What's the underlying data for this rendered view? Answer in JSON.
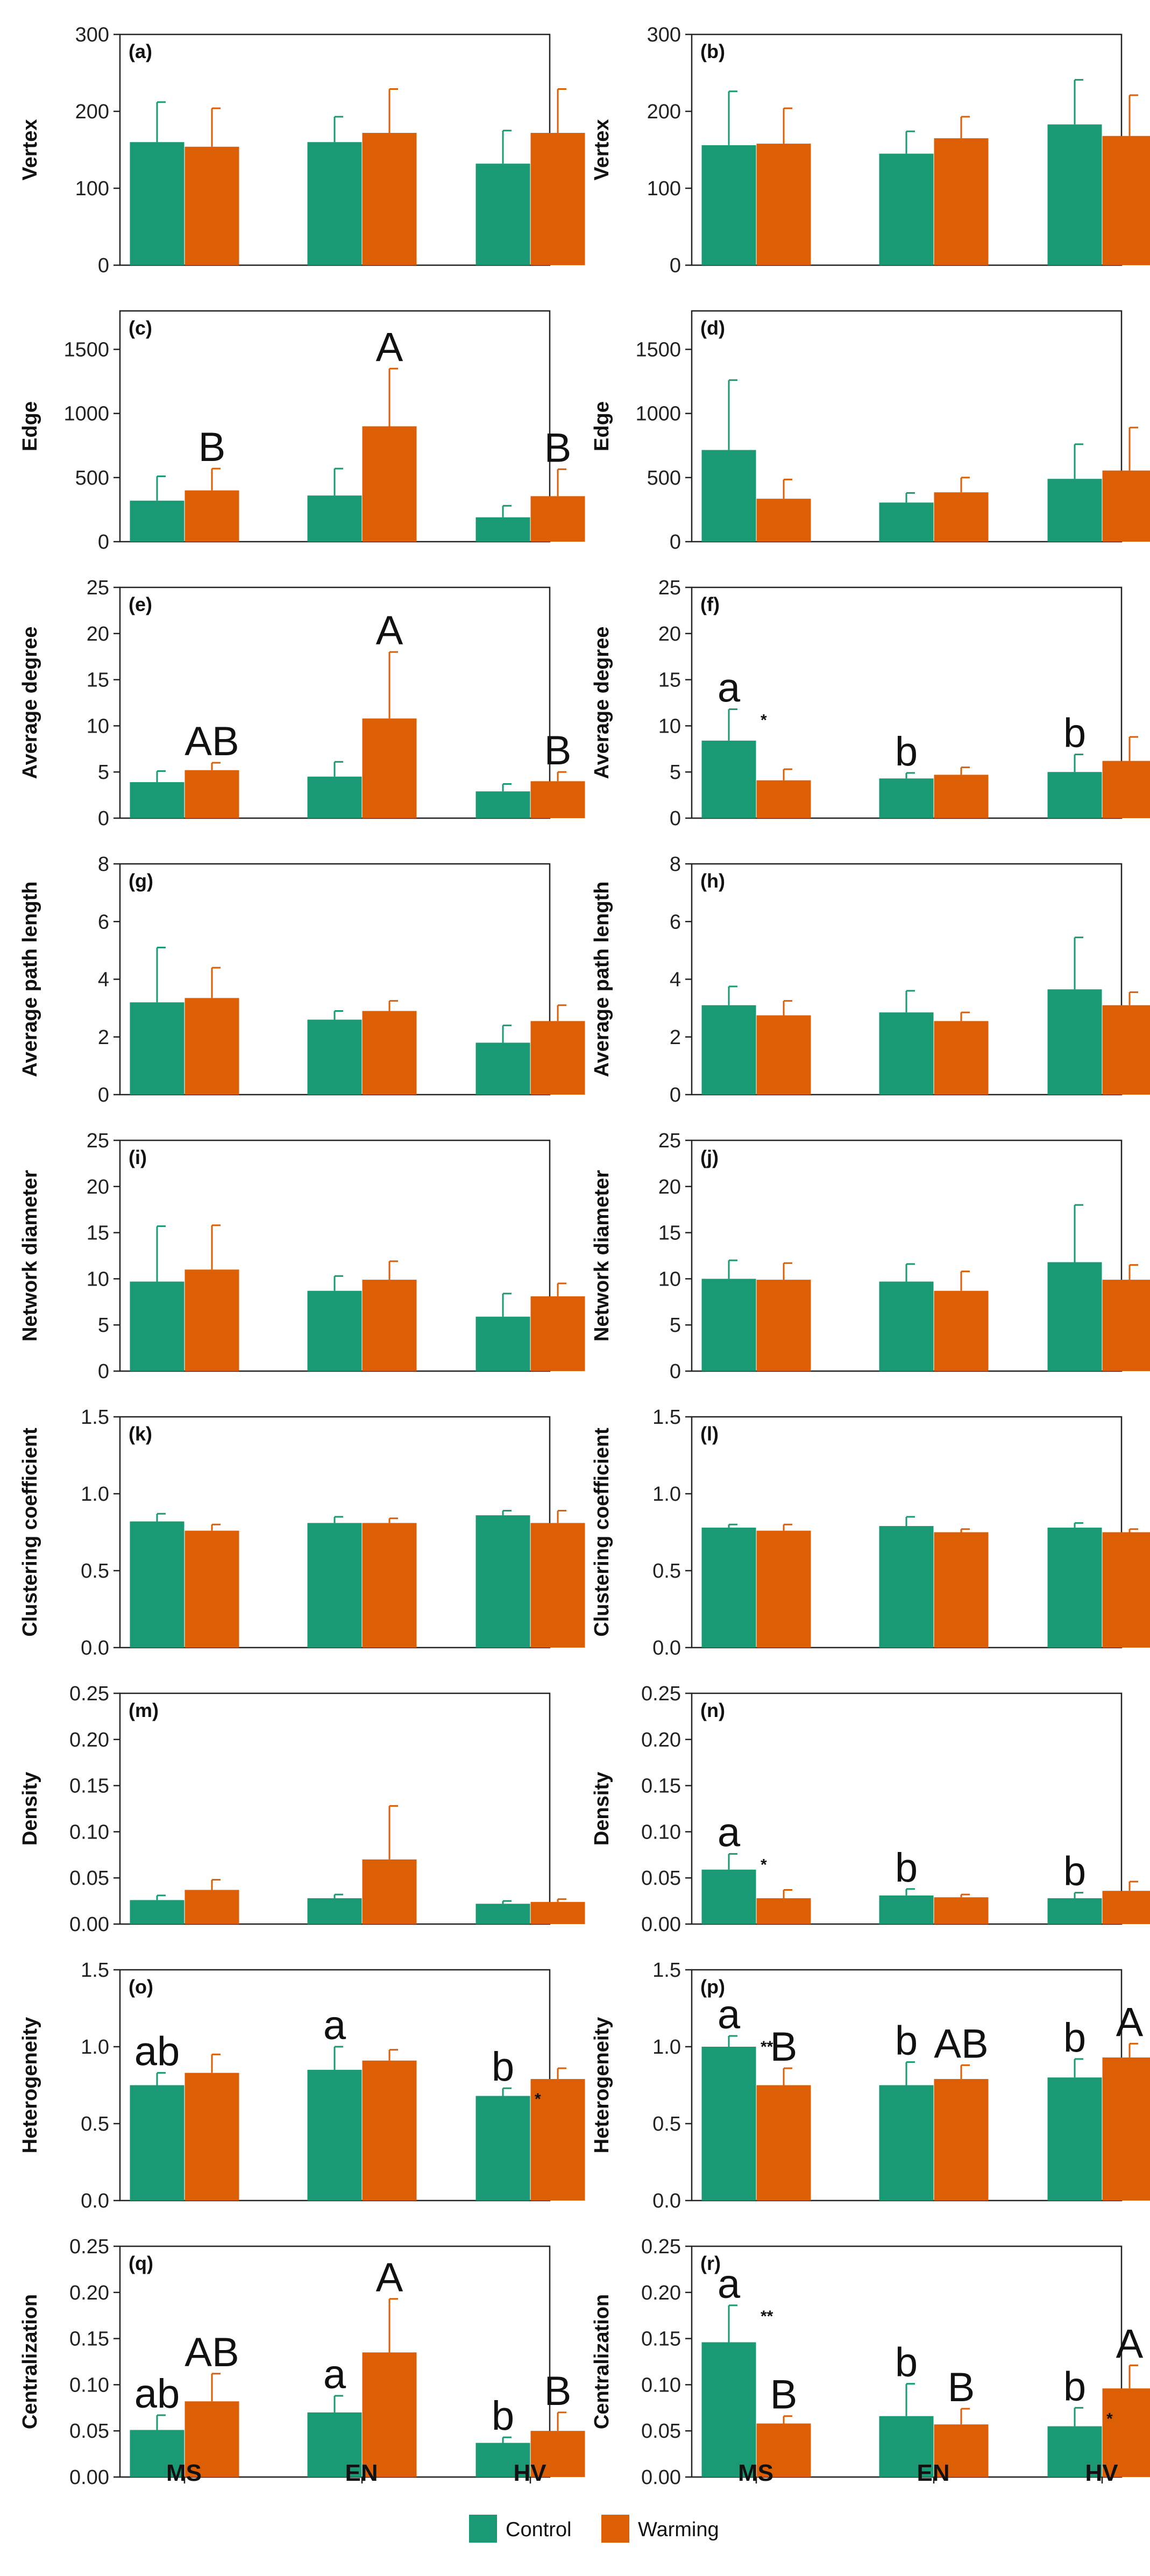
{
  "colors": {
    "control": "#1a9a74",
    "warming": "#dd5f05"
  },
  "legend": {
    "control": "Control",
    "warming": "Warming"
  },
  "categories": [
    "MS",
    "EN",
    "HV"
  ],
  "chart_data": [
    {
      "panel": "(a)",
      "type": "bar",
      "ylabel": "Vertex",
      "ylim": [
        0,
        300
      ],
      "yticks": [
        "0",
        "100",
        "200",
        "300"
      ],
      "categories": [
        "MS",
        "EN",
        "HV"
      ],
      "series": [
        {
          "name": "Control",
          "values": [
            160,
            160,
            132
          ],
          "err": [
            52,
            33,
            43
          ]
        },
        {
          "name": "Warming",
          "values": [
            154,
            172,
            172
          ],
          "err": [
            50,
            57,
            57
          ]
        }
      ],
      "letters": [],
      "stars": []
    },
    {
      "panel": "(b)",
      "type": "bar",
      "ylabel": "Vertex",
      "ylim": [
        0,
        300
      ],
      "yticks": [
        "0",
        "100",
        "200",
        "300"
      ],
      "categories": [
        "MS",
        "EN",
        "HV"
      ],
      "series": [
        {
          "name": "Control",
          "values": [
            156,
            145,
            183
          ],
          "err": [
            70,
            29,
            58
          ]
        },
        {
          "name": "Warming",
          "values": [
            158,
            165,
            168
          ],
          "err": [
            46,
            28,
            53
          ]
        }
      ],
      "letters": [],
      "stars": []
    },
    {
      "panel": "(c)",
      "type": "bar",
      "ylabel": "Edge",
      "ylim": [
        0,
        1800
      ],
      "yticks": [
        "0",
        "500",
        "1000",
        "1500"
      ],
      "categories": [
        "MS",
        "EN",
        "HV"
      ],
      "series": [
        {
          "name": "Control",
          "values": [
            320,
            360,
            190
          ],
          "err": [
            190,
            210,
            90
          ]
        },
        {
          "name": "Warming",
          "values": [
            400,
            900,
            355
          ],
          "err": [
            170,
            450,
            210
          ]
        }
      ],
      "letters": [
        {
          "series": 1,
          "cat": 0,
          "text": "B"
        },
        {
          "series": 1,
          "cat": 1,
          "text": "A"
        },
        {
          "series": 1,
          "cat": 2,
          "text": "B"
        }
      ],
      "stars": []
    },
    {
      "panel": "(d)",
      "type": "bar",
      "ylabel": "Edge",
      "ylim": [
        0,
        1800
      ],
      "yticks": [
        "0",
        "500",
        "1000",
        "1500"
      ],
      "categories": [
        "MS",
        "EN",
        "HV"
      ],
      "series": [
        {
          "name": "Control",
          "values": [
            715,
            305,
            490
          ],
          "err": [
            545,
            75,
            270
          ]
        },
        {
          "name": "Warming",
          "values": [
            335,
            385,
            555
          ],
          "err": [
            150,
            115,
            335
          ]
        }
      ],
      "letters": [],
      "stars": []
    },
    {
      "panel": "(e)",
      "type": "bar",
      "ylabel": "Average degree",
      "ylim": [
        0,
        25
      ],
      "yticks": [
        "0",
        "5",
        "10",
        "15",
        "20",
        "25"
      ],
      "categories": [
        "MS",
        "EN",
        "HV"
      ],
      "series": [
        {
          "name": "Control",
          "values": [
            3.9,
            4.5,
            2.9
          ],
          "err": [
            1.2,
            1.6,
            0.8
          ]
        },
        {
          "name": "Warming",
          "values": [
            5.2,
            10.8,
            4.0
          ],
          "err": [
            0.8,
            7.2,
            1.0
          ]
        }
      ],
      "letters": [
        {
          "series": 1,
          "cat": 0,
          "text": "AB"
        },
        {
          "series": 1,
          "cat": 1,
          "text": "A"
        },
        {
          "series": 1,
          "cat": 2,
          "text": "B"
        }
      ],
      "stars": []
    },
    {
      "panel": "(f)",
      "type": "bar",
      "ylabel": "Average degree",
      "ylim": [
        0,
        25
      ],
      "yticks": [
        "0",
        "5",
        "10",
        "15",
        "20",
        "25"
      ],
      "categories": [
        "MS",
        "EN",
        "HV"
      ],
      "series": [
        {
          "name": "Control",
          "values": [
            8.4,
            4.3,
            5.0
          ],
          "err": [
            3.4,
            0.6,
            1.9
          ]
        },
        {
          "name": "Warming",
          "values": [
            4.1,
            4.7,
            6.2
          ],
          "err": [
            1.2,
            0.8,
            2.6
          ]
        }
      ],
      "letters": [
        {
          "series": 0,
          "cat": 0,
          "text": "a"
        },
        {
          "series": 0,
          "cat": 1,
          "text": "b"
        },
        {
          "series": 0,
          "cat": 2,
          "text": "b"
        }
      ],
      "stars": [
        {
          "cat": 0,
          "text": "*"
        }
      ]
    },
    {
      "panel": "(g)",
      "type": "bar",
      "ylabel": "Average path length",
      "ylim": [
        0,
        8
      ],
      "yticks": [
        "0",
        "2",
        "4",
        "6",
        "8"
      ],
      "categories": [
        "MS",
        "EN",
        "HV"
      ],
      "series": [
        {
          "name": "Control",
          "values": [
            3.2,
            2.6,
            1.8
          ],
          "err": [
            1.9,
            0.3,
            0.6
          ]
        },
        {
          "name": "Warming",
          "values": [
            3.35,
            2.9,
            2.55
          ],
          "err": [
            1.05,
            0.35,
            0.55
          ]
        }
      ],
      "letters": [],
      "stars": []
    },
    {
      "panel": "(h)",
      "type": "bar",
      "ylabel": "Average path length",
      "ylim": [
        0,
        8
      ],
      "yticks": [
        "0",
        "2",
        "4",
        "6",
        "8"
      ],
      "categories": [
        "MS",
        "EN",
        "HV"
      ],
      "series": [
        {
          "name": "Control",
          "values": [
            3.1,
            2.85,
            3.65
          ],
          "err": [
            0.65,
            0.75,
            1.8
          ]
        },
        {
          "name": "Warming",
          "values": [
            2.75,
            2.55,
            3.1
          ],
          "err": [
            0.5,
            0.3,
            0.45
          ]
        }
      ],
      "letters": [],
      "stars": []
    },
    {
      "panel": "(i)",
      "type": "bar",
      "ylabel": "Network diameter",
      "ylim": [
        0,
        25
      ],
      "yticks": [
        "0",
        "5",
        "10",
        "15",
        "20",
        "25"
      ],
      "categories": [
        "MS",
        "EN",
        "HV"
      ],
      "series": [
        {
          "name": "Control",
          "values": [
            9.7,
            8.7,
            5.9
          ],
          "err": [
            6.0,
            1.6,
            2.5
          ]
        },
        {
          "name": "Warming",
          "values": [
            11.0,
            9.9,
            8.1
          ],
          "err": [
            4.8,
            2.0,
            1.4
          ]
        }
      ],
      "letters": [],
      "stars": []
    },
    {
      "panel": "(j)",
      "type": "bar",
      "ylabel": "Network diameter",
      "ylim": [
        0,
        25
      ],
      "yticks": [
        "0",
        "5",
        "10",
        "15",
        "20",
        "25"
      ],
      "categories": [
        "MS",
        "EN",
        "HV"
      ],
      "series": [
        {
          "name": "Control",
          "values": [
            10.0,
            9.7,
            11.8
          ],
          "err": [
            2.0,
            1.9,
            6.2
          ]
        },
        {
          "name": "Warming",
          "values": [
            9.9,
            8.7,
            9.9
          ],
          "err": [
            1.8,
            2.1,
            1.6
          ]
        }
      ],
      "letters": [],
      "stars": []
    },
    {
      "panel": "(k)",
      "type": "bar",
      "ylabel": "Clustering coefficient",
      "ylim": [
        0,
        1.5
      ],
      "yticks": [
        "0.0",
        "0.5",
        "1.0",
        "1.5"
      ],
      "categories": [
        "MS",
        "EN",
        "HV"
      ],
      "series": [
        {
          "name": "Control",
          "values": [
            0.82,
            0.81,
            0.86
          ],
          "err": [
            0.05,
            0.04,
            0.03
          ]
        },
        {
          "name": "Warming",
          "values": [
            0.76,
            0.81,
            0.81
          ],
          "err": [
            0.04,
            0.03,
            0.08
          ]
        }
      ],
      "letters": [],
      "stars": []
    },
    {
      "panel": "(l)",
      "type": "bar",
      "ylabel": "Clustering coefficient",
      "ylim": [
        0,
        1.5
      ],
      "yticks": [
        "0.0",
        "0.5",
        "1.0",
        "1.5"
      ],
      "categories": [
        "MS",
        "EN",
        "HV"
      ],
      "series": [
        {
          "name": "Control",
          "values": [
            0.78,
            0.79,
            0.78
          ],
          "err": [
            0.02,
            0.06,
            0.03
          ]
        },
        {
          "name": "Warming",
          "values": [
            0.76,
            0.75,
            0.75
          ],
          "err": [
            0.04,
            0.02,
            0.02
          ]
        }
      ],
      "letters": [],
      "stars": []
    },
    {
      "panel": "(m)",
      "type": "bar",
      "ylabel": "Density",
      "ylim": [
        0,
        0.25
      ],
      "yticks": [
        "0.00",
        "0.05",
        "0.10",
        "0.15",
        "0.20",
        "0.25"
      ],
      "categories": [
        "MS",
        "EN",
        "HV"
      ],
      "series": [
        {
          "name": "Control",
          "values": [
            0.026,
            0.028,
            0.022
          ],
          "err": [
            0.005,
            0.004,
            0.003
          ]
        },
        {
          "name": "Warming",
          "values": [
            0.037,
            0.07,
            0.024
          ],
          "err": [
            0.011,
            0.058,
            0.003
          ]
        }
      ],
      "letters": [],
      "stars": []
    },
    {
      "panel": "(n)",
      "type": "bar",
      "ylabel": "Density",
      "ylim": [
        0,
        0.25
      ],
      "yticks": [
        "0.00",
        "0.05",
        "0.10",
        "0.15",
        "0.20",
        "0.25"
      ],
      "categories": [
        "MS",
        "EN",
        "HV"
      ],
      "series": [
        {
          "name": "Control",
          "values": [
            0.059,
            0.031,
            0.028
          ],
          "err": [
            0.017,
            0.007,
            0.006
          ]
        },
        {
          "name": "Warming",
          "values": [
            0.028,
            0.029,
            0.036
          ],
          "err": [
            0.009,
            0.003,
            0.01
          ]
        }
      ],
      "letters": [
        {
          "series": 0,
          "cat": 0,
          "text": "a"
        },
        {
          "series": 0,
          "cat": 1,
          "text": "b"
        },
        {
          "series": 0,
          "cat": 2,
          "text": "b"
        }
      ],
      "stars": [
        {
          "cat": 0,
          "text": "*"
        }
      ]
    },
    {
      "panel": "(o)",
      "type": "bar",
      "ylabel": "Heterogeneity",
      "ylim": [
        0,
        1.5
      ],
      "yticks": [
        "0.0",
        "0.5",
        "1.0",
        "1.5"
      ],
      "categories": [
        "MS",
        "EN",
        "HV"
      ],
      "series": [
        {
          "name": "Control",
          "values": [
            0.75,
            0.85,
            0.68
          ],
          "err": [
            0.08,
            0.15,
            0.05
          ]
        },
        {
          "name": "Warming",
          "values": [
            0.83,
            0.91,
            0.79
          ],
          "err": [
            0.12,
            0.07,
            0.07
          ]
        }
      ],
      "letters": [
        {
          "series": 0,
          "cat": 0,
          "text": "ab"
        },
        {
          "series": 0,
          "cat": 1,
          "text": "a"
        },
        {
          "series": 0,
          "cat": 2,
          "text": "b"
        }
      ],
      "stars": [
        {
          "cat": 2,
          "text": "*"
        }
      ]
    },
    {
      "panel": "(p)",
      "type": "bar",
      "ylabel": "Heterogeneity",
      "ylim": [
        0,
        1.5
      ],
      "yticks": [
        "0.0",
        "0.5",
        "1.0",
        "1.5"
      ],
      "categories": [
        "MS",
        "EN",
        "HV"
      ],
      "series": [
        {
          "name": "Control",
          "values": [
            1.0,
            0.75,
            0.8
          ],
          "err": [
            0.07,
            0.15,
            0.12
          ]
        },
        {
          "name": "Warming",
          "values": [
            0.75,
            0.79,
            0.93
          ],
          "err": [
            0.11,
            0.09,
            0.09
          ]
        }
      ],
      "letters": [
        {
          "series": 0,
          "cat": 0,
          "text": "a"
        },
        {
          "series": 1,
          "cat": 0,
          "text": "B"
        },
        {
          "series": 0,
          "cat": 1,
          "text": "b"
        },
        {
          "series": 1,
          "cat": 1,
          "text": "AB"
        },
        {
          "series": 0,
          "cat": 2,
          "text": "b"
        },
        {
          "series": 1,
          "cat": 2,
          "text": "A"
        }
      ],
      "stars": [
        {
          "cat": 0,
          "text": "**"
        }
      ]
    },
    {
      "panel": "(q)",
      "type": "bar",
      "ylabel": "Centralization",
      "ylim": [
        0,
        0.25
      ],
      "yticks": [
        "0.00",
        "0.05",
        "0.10",
        "0.15",
        "0.20",
        "0.25"
      ],
      "categories": [
        "MS",
        "EN",
        "HV"
      ],
      "series": [
        {
          "name": "Control",
          "values": [
            0.051,
            0.07,
            0.037
          ],
          "err": [
            0.016,
            0.018,
            0.006
          ]
        },
        {
          "name": "Warming",
          "values": [
            0.082,
            0.135,
            0.05
          ],
          "err": [
            0.03,
            0.058,
            0.02
          ]
        }
      ],
      "letters": [
        {
          "series": 0,
          "cat": 0,
          "text": "ab"
        },
        {
          "series": 1,
          "cat": 0,
          "text": "AB"
        },
        {
          "series": 0,
          "cat": 1,
          "text": "a"
        },
        {
          "series": 1,
          "cat": 1,
          "text": "A"
        },
        {
          "series": 0,
          "cat": 2,
          "text": "b"
        },
        {
          "series": 1,
          "cat": 2,
          "text": "B"
        }
      ],
      "stars": []
    },
    {
      "panel": "(r)",
      "type": "bar",
      "ylabel": "Centralization",
      "ylim": [
        0,
        0.25
      ],
      "yticks": [
        "0.00",
        "0.05",
        "0.10",
        "0.15",
        "0.20",
        "0.25"
      ],
      "categories": [
        "MS",
        "EN",
        "HV"
      ],
      "series": [
        {
          "name": "Control",
          "values": [
            0.146,
            0.066,
            0.055
          ],
          "err": [
            0.04,
            0.035,
            0.02
          ]
        },
        {
          "name": "Warming",
          "values": [
            0.058,
            0.057,
            0.096
          ],
          "err": [
            0.008,
            0.017,
            0.025
          ]
        }
      ],
      "letters": [
        {
          "series": 0,
          "cat": 0,
          "text": "a"
        },
        {
          "series": 1,
          "cat": 0,
          "text": "B"
        },
        {
          "series": 0,
          "cat": 1,
          "text": "b"
        },
        {
          "series": 1,
          "cat": 1,
          "text": "B"
        },
        {
          "series": 0,
          "cat": 2,
          "text": "b"
        },
        {
          "series": 1,
          "cat": 2,
          "text": "A"
        }
      ],
      "stars": [
        {
          "cat": 0,
          "text": "**"
        },
        {
          "cat": 2,
          "text": "*"
        }
      ]
    }
  ]
}
